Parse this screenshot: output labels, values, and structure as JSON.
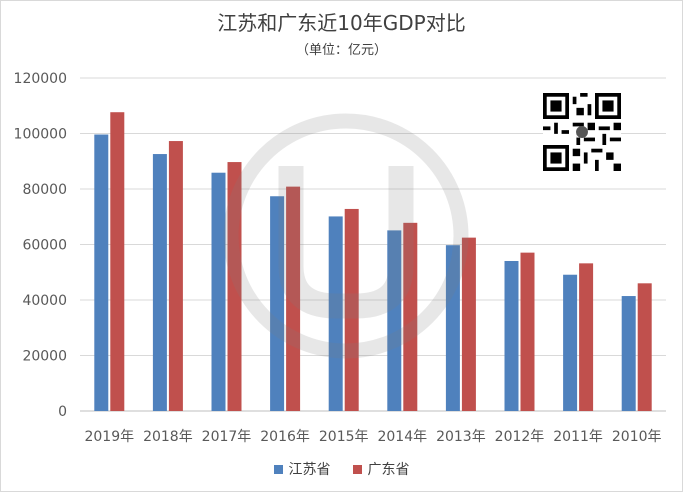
{
  "chart_data": {
    "type": "bar",
    "title": "江苏和广东近10年GDP对比",
    "subtitle": "（单位：亿元）",
    "categories": [
      "2019年",
      "2018年",
      "2017年",
      "2016年",
      "2015年",
      "2014年",
      "2013年",
      "2012年",
      "2011年",
      "2010年"
    ],
    "series": [
      {
        "name": "江苏省",
        "color": "#4f81bd",
        "values": [
          99632,
          92595,
          85870,
          77388,
          70116,
          65088,
          59753,
          54058,
          49110,
          41425
        ]
      },
      {
        "name": "广东省",
        "color": "#c0504d",
        "values": [
          107671,
          97278,
          89705,
          80855,
          72813,
          67810,
          62475,
          57068,
          53210,
          46013
        ]
      }
    ],
    "ylim": [
      0,
      120000
    ],
    "yticks": [
      "0",
      "20000",
      "40000",
      "60000",
      "80000",
      "100000",
      "120000"
    ],
    "grid": true,
    "legend": "bottom"
  }
}
